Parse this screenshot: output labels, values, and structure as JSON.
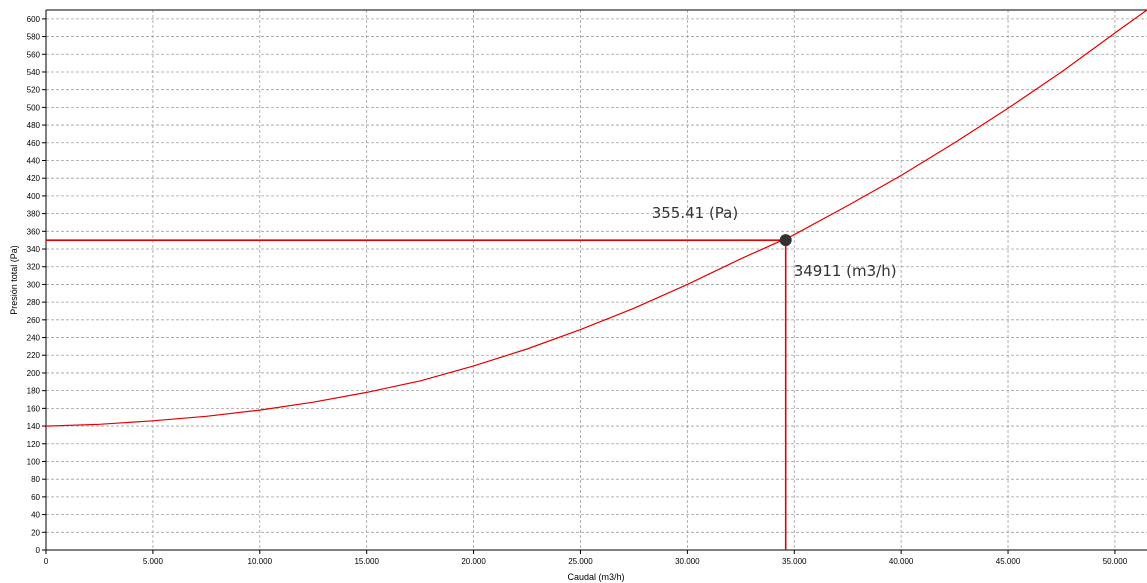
{
  "chart_data": {
    "type": "line",
    "xlabel": "Caudal (m3/h)",
    "ylabel": "Presión total (Pa)",
    "xlim": [
      0,
      51500
    ],
    "ylim": [
      0,
      610
    ],
    "x_ticks": [
      0,
      5000,
      10000,
      15000,
      20000,
      25000,
      30000,
      35000,
      40000,
      45000,
      50000
    ],
    "x_tick_labels": [
      "0",
      "5.000",
      "10.000",
      "15.000",
      "20.000",
      "25.000",
      "30.000",
      "35.000",
      "40.000",
      "45.000",
      "50.000"
    ],
    "y_ticks": [
      0,
      20,
      40,
      60,
      80,
      100,
      120,
      140,
      160,
      180,
      200,
      220,
      240,
      260,
      280,
      300,
      320,
      340,
      360,
      380,
      400,
      420,
      440,
      460,
      480,
      500,
      520,
      540,
      560,
      580,
      600
    ],
    "y_tick_labels": [
      "0",
      "20",
      "40",
      "60",
      "80",
      "100",
      "120",
      "140",
      "160",
      "180",
      "200",
      "220",
      "240",
      "260",
      "280",
      "300",
      "320",
      "340",
      "360",
      "380",
      "400",
      "420",
      "440",
      "460",
      "480",
      "500",
      "520",
      "540",
      "560",
      "580",
      "600"
    ],
    "grid": true,
    "series": [
      {
        "color": "#e60000",
        "x": [
          0,
          2500,
          5000,
          7500,
          10000,
          12500,
          15000,
          17500,
          20000,
          22500,
          25000,
          27500,
          30000,
          32500,
          34911,
          37500,
          40000,
          42500,
          45000,
          47500,
          50000,
          51500
        ],
        "y": [
          140,
          142,
          146,
          151,
          158,
          167,
          178,
          191,
          208,
          227,
          249,
          273,
          300,
          329,
          355,
          389,
          423,
          460,
          499,
          540,
          584,
          610
        ]
      }
    ],
    "operating_point": {
      "x": 34600,
      "y": 350,
      "pressure_label": "355.41 (Pa)",
      "flow_label": "34911 (m3/h)"
    },
    "colors": {
      "curve": "#e60000",
      "guide": "#e60000",
      "point": "#333333",
      "grid": "#a0a0a0"
    }
  }
}
